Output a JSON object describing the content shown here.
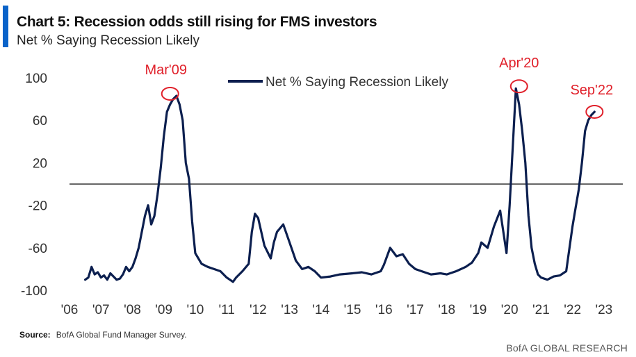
{
  "header": {
    "title": "Chart 5: Recession odds still rising for FMS investors",
    "subtitle": "Net % Saying Recession Likely"
  },
  "source": {
    "label": "Source:",
    "text": "BofA Global Fund Manager Survey."
  },
  "footer": {
    "brand": "BofA GLOBAL RESEARCH"
  },
  "colors": {
    "accent": "#0a63c9",
    "series": "#0c1f4f",
    "annotation": "#e0202a",
    "zero_line": "#666666"
  },
  "chart_data": {
    "type": "line",
    "title": "Chart 5: Recession odds still rising for FMS investors",
    "subtitle": "Net % Saying Recession Likely",
    "legend": "Net % Saying Recession Likely",
    "legend_position": "top-center",
    "grid": false,
    "ylim": [
      -100,
      100
    ],
    "yticks": [
      100,
      60,
      20,
      -20,
      -60,
      -100
    ],
    "ytick_labels": [
      "100",
      "60",
      "20",
      "-20",
      "-60",
      "-100"
    ],
    "xlim": [
      2006,
      2023.6
    ],
    "xticks": [
      2006,
      2007,
      2008,
      2009,
      2010,
      2011,
      2012,
      2013,
      2014,
      2015,
      2016,
      2017,
      2018,
      2019,
      2020,
      2021,
      2022,
      2023
    ],
    "xtick_labels": [
      "'06",
      "'07",
      "'08",
      "'09",
      "'10",
      "'11",
      "'12",
      "'13",
      "'14",
      "'15",
      "'16",
      "'17",
      "'18",
      "'19",
      "'20",
      "'21",
      "'22",
      "'23"
    ],
    "reference_line": 0,
    "annotations": [
      {
        "label": "Mar'09",
        "x": 2009.2,
        "y": 85
      },
      {
        "label": "Apr'20",
        "x": 2020.3,
        "y": 92
      },
      {
        "label": "Sep'22",
        "x": 2022.7,
        "y": 68
      }
    ],
    "series": [
      {
        "name": "Net % Saying Recession Likely",
        "x": [
          2006.5,
          2006.6,
          2006.7,
          2006.8,
          2006.9,
          2007.0,
          2007.1,
          2007.2,
          2007.3,
          2007.4,
          2007.5,
          2007.6,
          2007.7,
          2007.8,
          2007.9,
          2008.0,
          2008.1,
          2008.2,
          2008.3,
          2008.4,
          2008.5,
          2008.6,
          2008.7,
          2008.8,
          2008.9,
          2009.0,
          2009.1,
          2009.2,
          2009.3,
          2009.4,
          2009.5,
          2009.6,
          2009.7,
          2009.8,
          2009.9,
          2010.0,
          2010.2,
          2010.4,
          2010.6,
          2010.8,
          2011.0,
          2011.1,
          2011.2,
          2011.3,
          2011.5,
          2011.7,
          2011.8,
          2011.9,
          2012.0,
          2012.2,
          2012.4,
          2012.5,
          2012.6,
          2012.8,
          2013.0,
          2013.2,
          2013.4,
          2013.6,
          2013.8,
          2014.0,
          2014.3,
          2014.6,
          2015.0,
          2015.3,
          2015.6,
          2015.9,
          2016.0,
          2016.2,
          2016.4,
          2016.6,
          2016.8,
          2017.0,
          2017.2,
          2017.5,
          2017.8,
          2018.0,
          2018.3,
          2018.6,
          2018.8,
          2019.0,
          2019.1,
          2019.3,
          2019.5,
          2019.7,
          2019.9,
          2020.0,
          2020.1,
          2020.2,
          2020.3,
          2020.4,
          2020.5,
          2020.6,
          2020.7,
          2020.8,
          2020.9,
          2021.0,
          2021.2,
          2021.4,
          2021.6,
          2021.8,
          2022.0,
          2022.1,
          2022.2,
          2022.3,
          2022.4,
          2022.5,
          2022.6,
          2022.7
        ],
        "y": [
          -90,
          -88,
          -78,
          -85,
          -83,
          -88,
          -86,
          -90,
          -84,
          -87,
          -90,
          -89,
          -85,
          -78,
          -82,
          -78,
          -70,
          -60,
          -45,
          -30,
          -20,
          -38,
          -30,
          -10,
          15,
          45,
          68,
          75,
          80,
          83,
          75,
          60,
          20,
          5,
          -35,
          -65,
          -75,
          -78,
          -80,
          -82,
          -88,
          -90,
          -92,
          -88,
          -82,
          -75,
          -45,
          -28,
          -32,
          -58,
          -70,
          -55,
          -45,
          -38,
          -55,
          -72,
          -80,
          -78,
          -82,
          -88,
          -87,
          -85,
          -84,
          -83,
          -85,
          -82,
          -76,
          -60,
          -68,
          -66,
          -75,
          -80,
          -82,
          -85,
          -84,
          -85,
          -82,
          -78,
          -74,
          -65,
          -55,
          -60,
          -40,
          -25,
          -65,
          -20,
          35,
          90,
          75,
          50,
          20,
          -30,
          -60,
          -75,
          -85,
          -88,
          -90,
          -87,
          -86,
          -82,
          -40,
          -22,
          -5,
          20,
          50,
          60,
          65,
          68
        ]
      }
    ]
  }
}
